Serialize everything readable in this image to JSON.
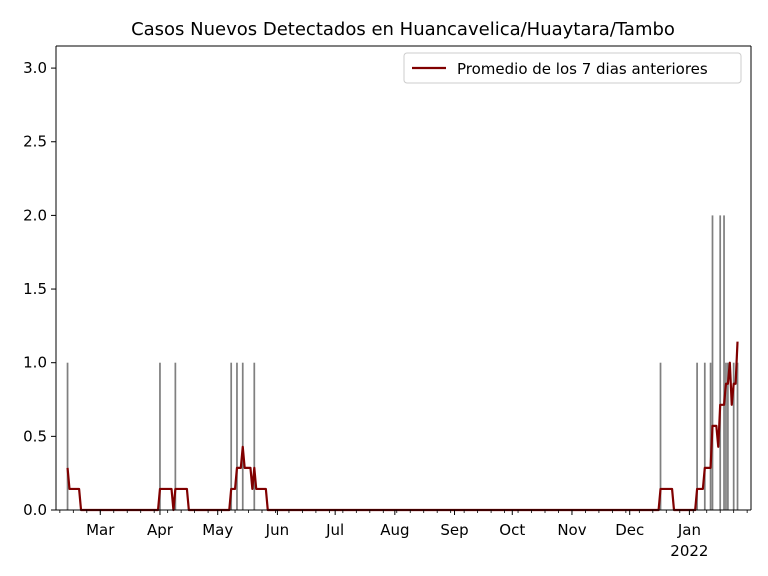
{
  "chart_data": {
    "type": "bar+line",
    "title": "Casos Nuevos Detectados en Huancavelica/Huaytara/Tambo",
    "xlabel": "",
    "ylabel": "",
    "ylim": [
      0,
      3.15
    ],
    "yticks": [
      "0.0",
      "0.5",
      "1.0",
      "1.5",
      "2.0",
      "2.5",
      "3.0"
    ],
    "xlim": [
      "2021-02-06",
      "2022-02-02"
    ],
    "xticks": [
      {
        "date": "2021-03-01",
        "label": "Mar"
      },
      {
        "date": "2021-04-01",
        "label": "Apr"
      },
      {
        "date": "2021-05-01",
        "label": "May"
      },
      {
        "date": "2021-06-01",
        "label": "Jun"
      },
      {
        "date": "2021-07-01",
        "label": "Jul"
      },
      {
        "date": "2021-08-01",
        "label": "Aug"
      },
      {
        "date": "2021-09-01",
        "label": "Sep"
      },
      {
        "date": "2021-10-01",
        "label": "Oct"
      },
      {
        "date": "2021-11-01",
        "label": "Nov"
      },
      {
        "date": "2021-12-01",
        "label": "Dec"
      },
      {
        "date": "2022-01-01",
        "label": "Jan",
        "sublabel": "2022"
      }
    ],
    "legend": {
      "placement": "top-right",
      "entries": [
        "Promedio de los 7 dias anteriores"
      ]
    },
    "grid": false,
    "colors": {
      "bars": "#808080",
      "line": "#800000"
    },
    "daily_cases": [
      {
        "date": "2021-02-12",
        "value": 1
      },
      {
        "date": "2021-04-01",
        "value": 1
      },
      {
        "date": "2021-04-09",
        "value": 1
      },
      {
        "date": "2021-05-08",
        "value": 1
      },
      {
        "date": "2021-05-11",
        "value": 1
      },
      {
        "date": "2021-05-14",
        "value": 1
      },
      {
        "date": "2021-05-20",
        "value": 1
      },
      {
        "date": "2021-12-17",
        "value": 1
      },
      {
        "date": "2022-01-05",
        "value": 1
      },
      {
        "date": "2022-01-09",
        "value": 1
      },
      {
        "date": "2022-01-12",
        "value": 1
      },
      {
        "date": "2022-01-13",
        "value": 2
      },
      {
        "date": "2022-01-17",
        "value": 2
      },
      {
        "date": "2022-01-19",
        "value": 2
      },
      {
        "date": "2022-01-20",
        "value": 1
      },
      {
        "date": "2022-01-21",
        "value": 1
      },
      {
        "date": "2022-01-24",
        "value": 1
      },
      {
        "date": "2022-01-26",
        "value": 1
      }
    ],
    "series": [
      {
        "name": "Promedio de los 7 dias anteriores",
        "points": [
          [
            "2021-02-12",
            0.286
          ],
          [
            "2021-02-13",
            0.143
          ],
          [
            "2021-02-18",
            0.143
          ],
          [
            "2021-02-19",
            0
          ],
          [
            "2021-03-31",
            0
          ],
          [
            "2021-04-01",
            0.143
          ],
          [
            "2021-04-07",
            0.143
          ],
          [
            "2021-04-08",
            0
          ],
          [
            "2021-04-09",
            0.143
          ],
          [
            "2021-04-15",
            0.143
          ],
          [
            "2021-04-16",
            0
          ],
          [
            "2021-05-07",
            0
          ],
          [
            "2021-05-08",
            0.143
          ],
          [
            "2021-05-10",
            0.143
          ],
          [
            "2021-05-11",
            0.286
          ],
          [
            "2021-05-13",
            0.286
          ],
          [
            "2021-05-14",
            0.429
          ],
          [
            "2021-05-15",
            0.286
          ],
          [
            "2021-05-18",
            0.286
          ],
          [
            "2021-05-19",
            0.143
          ],
          [
            "2021-05-20",
            0.286
          ],
          [
            "2021-05-21",
            0.143
          ],
          [
            "2021-05-26",
            0.143
          ],
          [
            "2021-05-27",
            0
          ],
          [
            "2021-12-16",
            0
          ],
          [
            "2021-12-17",
            0.143
          ],
          [
            "2021-12-23",
            0.143
          ],
          [
            "2021-12-24",
            0
          ],
          [
            "2022-01-04",
            0
          ],
          [
            "2022-01-05",
            0.143
          ],
          [
            "2022-01-08",
            0.143
          ],
          [
            "2022-01-09",
            0.286
          ],
          [
            "2022-01-12",
            0.286
          ],
          [
            "2022-01-13",
            0.571
          ],
          [
            "2022-01-15",
            0.571
          ],
          [
            "2022-01-16",
            0.429
          ],
          [
            "2022-01-17",
            0.714
          ],
          [
            "2022-01-19",
            0.714
          ],
          [
            "2022-01-20",
            0.857
          ],
          [
            "2022-01-21",
            0.857
          ],
          [
            "2022-01-22",
            1.0
          ],
          [
            "2022-01-23",
            0.714
          ],
          [
            "2022-01-24",
            0.857
          ],
          [
            "2022-01-25",
            0.857
          ],
          [
            "2022-01-26",
            1.143
          ]
        ]
      }
    ]
  }
}
